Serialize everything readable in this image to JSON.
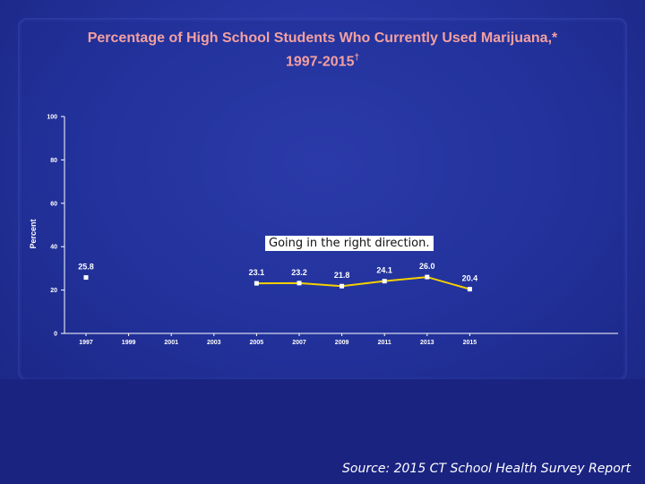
{
  "slide": {
    "title_line1": "Percentage of High School Students Who Currently Used Marijuana,*",
    "title_line2": "1997-2015",
    "title_mark": "†",
    "source": "Source: 2015 CT School Health Survey Report",
    "annotation": "Going in the right direction."
  },
  "colors": {
    "title": "#f3a0a0",
    "background": "#24339e",
    "line": "#f5d000",
    "marker": "#ffffff"
  },
  "chart_data": {
    "type": "line",
    "title": "Percentage of High School Students Who Currently Used Marijuana,* 1997-2015†",
    "ylabel": "Percent",
    "xlabel": "",
    "ylim": [
      0,
      100
    ],
    "yticks": [
      0,
      20,
      40,
      60,
      80,
      100
    ],
    "categories": [
      "1997",
      "1999",
      "2001",
      "2003",
      "2005",
      "2007",
      "2009",
      "2011",
      "2013",
      "2015"
    ],
    "standalone_points": [
      {
        "x": "1997",
        "y": 25.8
      }
    ],
    "series": [
      {
        "x": [
          "2005",
          "2007",
          "2009",
          "2011",
          "2013",
          "2015"
        ],
        "values": [
          23.1,
          23.2,
          21.8,
          24.1,
          26.0,
          20.4
        ]
      }
    ],
    "data_labels": [
      "25.8",
      "23.1",
      "23.2",
      "21.8",
      "24.1",
      "26.0",
      "20.4"
    ],
    "annotation": "Going in the right direction."
  }
}
